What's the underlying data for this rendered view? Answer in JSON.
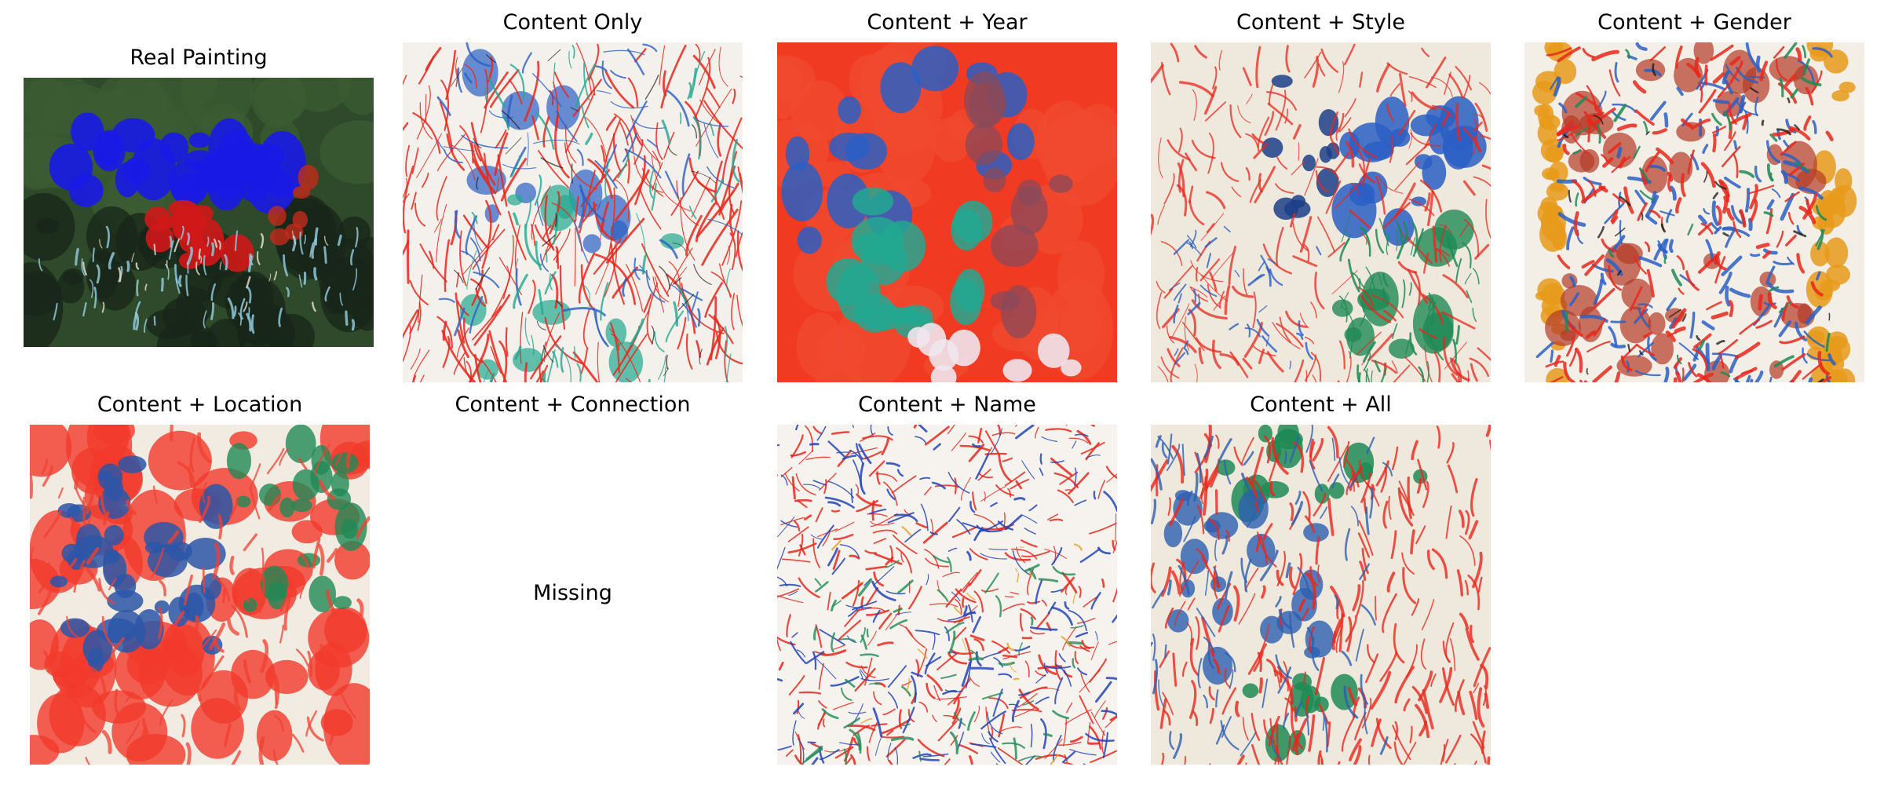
{
  "panels": [
    {
      "title": "Real Painting"
    },
    {
      "title": "Content Only"
    },
    {
      "title": "Content + Year"
    },
    {
      "title": "Content + Style"
    },
    {
      "title": "Content + Gender"
    },
    {
      "title": "Content + Location"
    },
    {
      "title": "Content + Connection",
      "placeholder": "Missing"
    },
    {
      "title": "Content + Name"
    },
    {
      "title": "Content + All"
    }
  ],
  "palette": {
    "red": "#e8271c",
    "orange_red": "#f03a22",
    "blue": "#2a5fc4",
    "deep_blue": "#1a1ae6",
    "teal": "#22a890",
    "green": "#1f8a55",
    "dark_green": "#2e4a2a",
    "cream": "#efe8dc",
    "amber": "#e89a1a",
    "light_blue": "#8ec6d8"
  }
}
